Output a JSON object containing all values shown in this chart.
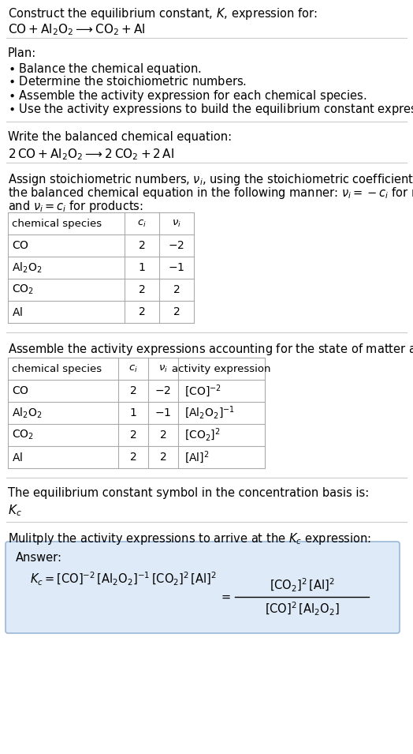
{
  "title_line1": "Construct the equilibrium constant, $K$, expression for:",
  "title_line2": "$\\mathrm{CO} + \\mathrm{Al_2O_2} \\longrightarrow \\mathrm{CO_2} + \\mathrm{Al}$",
  "plan_header": "Plan:",
  "plan_bullets": [
    "\\bullet Balance the chemical equation.",
    "\\bullet Determine the stoichiometric numbers.",
    "\\bullet Assemble the activity expression for each chemical species.",
    "\\bullet Use the activity expressions to build the equilibrium constant expression."
  ],
  "balanced_eq_header": "Write the balanced chemical equation:",
  "balanced_eq": "$2\\,\\mathrm{CO} + \\mathrm{Al_2O_2} \\longrightarrow 2\\,\\mathrm{CO_2} + 2\\,\\mathrm{Al}$",
  "stoich_intro": "Assign stoichiometric numbers, $\\nu_i$, using the stoichiometric coefficients, $c_i$, from the balanced chemical equation in the following manner: $\\nu_i = -c_i$ for reactants and $\\nu_i = c_i$ for products:",
  "table1_col_headers": [
    "chemical species",
    "$c_i$",
    "$\\nu_i$"
  ],
  "table1_rows": [
    [
      "$\\mathrm{CO}$",
      "2",
      "$-2$"
    ],
    [
      "$\\mathrm{Al_2O_2}$",
      "1",
      "$-1$"
    ],
    [
      "$\\mathrm{CO_2}$",
      "2",
      "2"
    ],
    [
      "$\\mathrm{Al}$",
      "2",
      "2"
    ]
  ],
  "assemble_header": "Assemble the activity expressions accounting for the state of matter and $\\nu_i$:",
  "table2_col_headers": [
    "chemical species",
    "$c_i$",
    "$\\nu_i$",
    "activity expression"
  ],
  "table2_rows": [
    [
      "$\\mathrm{CO}$",
      "2",
      "$-2$",
      "$[\\mathrm{CO}]^{-2}$"
    ],
    [
      "$\\mathrm{Al_2O_2}$",
      "1",
      "$-1$",
      "$[\\mathrm{Al_2O_2}]^{-1}$"
    ],
    [
      "$\\mathrm{CO_2}$",
      "2",
      "2",
      "$[\\mathrm{CO_2}]^{2}$"
    ],
    [
      "$\\mathrm{Al}$",
      "2",
      "2",
      "$[\\mathrm{Al}]^{2}$"
    ]
  ],
  "kc_header": "The equilibrium constant symbol in the concentration basis is:",
  "kc_symbol": "$K_c$",
  "multiply_header": "Mulitply the activity expressions to arrive at the $K_c$ expression:",
  "answer_label": "Answer:",
  "kc_line1": "$K_c = [\\mathrm{CO}]^{-2}\\,[\\mathrm{Al_2O_2}]^{-1}\\,[\\mathrm{CO_2}]^{2}\\,[\\mathrm{Al}]^{2}$",
  "kc_equals": "$=$",
  "kc_numerator": "$[\\mathrm{CO_2}]^{2}\\,[\\mathrm{Al}]^{2}$",
  "kc_denominator": "$[\\mathrm{CO}]^{2}\\,[\\mathrm{Al_2O_2}]$",
  "bg_color": "#ffffff",
  "text_color": "#000000",
  "grid_color": "#aaaaaa",
  "answer_bg": "#deeaf7",
  "answer_border": "#9ab8d8",
  "sep_color": "#cccccc"
}
